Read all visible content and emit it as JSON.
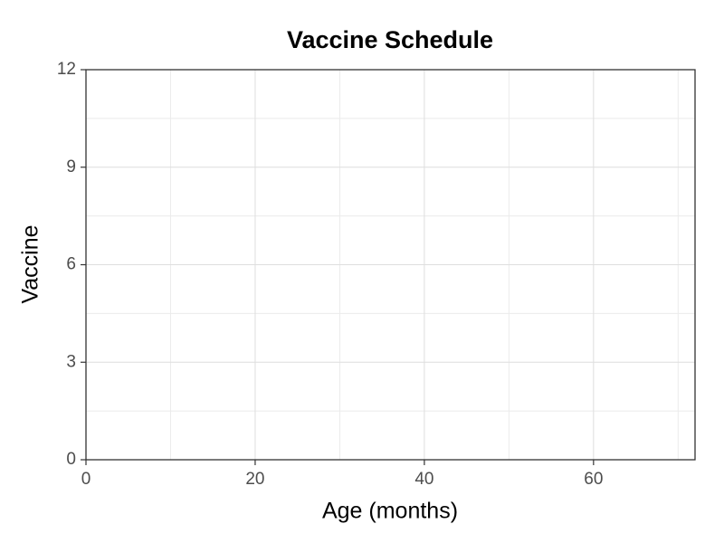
{
  "chart_data": {
    "type": "scatter",
    "title": "Vaccine Schedule",
    "xlabel": "Age (months)",
    "ylabel": "Vaccine",
    "xlim": [
      0,
      72
    ],
    "ylim": [
      0,
      12
    ],
    "xticks": [
      0,
      20,
      40,
      60
    ],
    "yticks": [
      0,
      3,
      6,
      9,
      12
    ],
    "grid": true,
    "minor_grid": true
  }
}
